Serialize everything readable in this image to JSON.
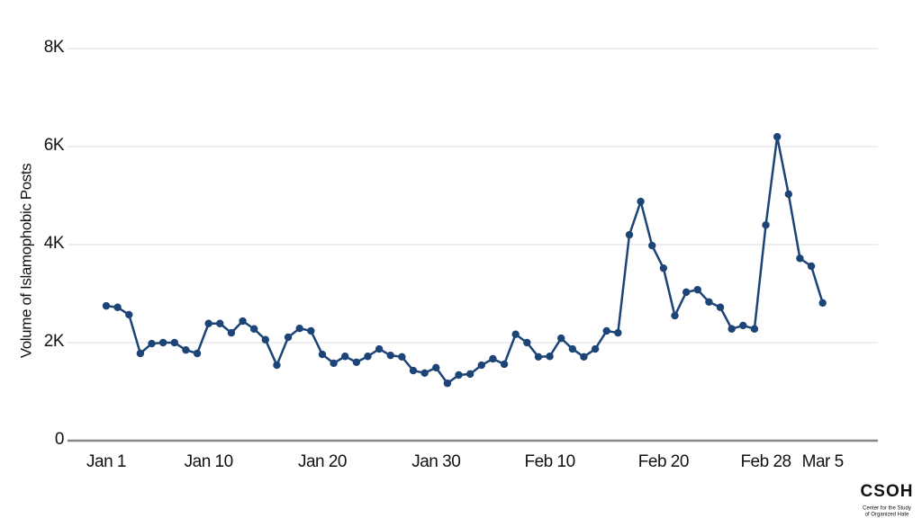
{
  "chart_data": {
    "type": "line",
    "y_label": "Volume of Islamophobic Posts",
    "categories": [
      "Jan 1",
      null,
      null,
      null,
      null,
      null,
      null,
      null,
      null,
      "Jan 10",
      null,
      null,
      null,
      null,
      null,
      null,
      null,
      null,
      null,
      "Jan 20",
      null,
      null,
      null,
      null,
      null,
      null,
      null,
      null,
      null,
      "Jan 30",
      null,
      null,
      null,
      null,
      null,
      null,
      null,
      null,
      null,
      "Feb 10",
      null,
      null,
      null,
      null,
      null,
      null,
      null,
      null,
      null,
      "Feb 20",
      null,
      null,
      null,
      null,
      null,
      null,
      null,
      null,
      "Feb 28",
      null,
      null,
      null,
      null,
      "Mar 5"
    ],
    "values": [
      2750,
      2720,
      2570,
      1780,
      1980,
      2000,
      2000,
      1850,
      1780,
      2390,
      2390,
      2200,
      2440,
      2280,
      2060,
      1540,
      2110,
      2290,
      2240,
      1760,
      1580,
      1720,
      1600,
      1720,
      1870,
      1740,
      1710,
      1430,
      1380,
      1490,
      1170,
      1340,
      1360,
      1540,
      1670,
      1560,
      2170,
      2000,
      1710,
      1720,
      2090,
      1870,
      1710,
      1870,
      2240,
      2200,
      4200,
      4880,
      3980,
      3520,
      2550,
      3030,
      3080,
      2830,
      2720,
      2280,
      2350,
      2280,
      4400,
      6200,
      5030,
      3720,
      3560,
      2810
    ],
    "color": "#1d4477",
    "ylim": [
      0,
      8000
    ],
    "yticks": [
      0,
      {
        "value": 2000,
        "label": "2K"
      },
      {
        "value": 4000,
        "label": "4K"
      },
      {
        "value": 6000,
        "label": "6K"
      },
      {
        "value": 8000,
        "label": "8K"
      }
    ],
    "grid": true
  },
  "logo": {
    "text": "CSOH",
    "caption_1": "Center for the Study",
    "caption_2": "of Organized Hate"
  }
}
